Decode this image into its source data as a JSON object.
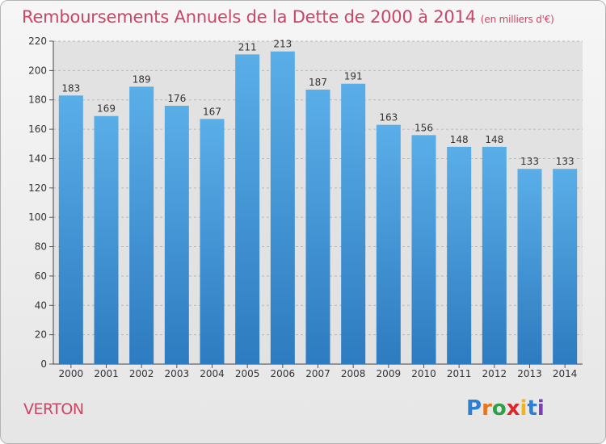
{
  "chart_data": {
    "type": "bar",
    "title": "Remboursements Annuels de la Dette de 2000 à 2014",
    "subtitle": "(en milliers d'€)",
    "categories": [
      "2000",
      "2001",
      "2002",
      "2003",
      "2004",
      "2005",
      "2006",
      "2007",
      "2008",
      "2009",
      "2010",
      "2011",
      "2012",
      "2013",
      "2014"
    ],
    "values": [
      183,
      169,
      189,
      176,
      167,
      211,
      213,
      187,
      191,
      163,
      156,
      148,
      148,
      133,
      133
    ],
    "ylim": [
      0,
      220
    ],
    "yticks": [
      0,
      20,
      40,
      60,
      80,
      100,
      120,
      140,
      160,
      180,
      200,
      220
    ],
    "grid": true,
    "bar_color": "#4a9ee0",
    "title_color": "#cc4466"
  },
  "footer": {
    "city": "VERTON",
    "logo": "Proxiti"
  }
}
